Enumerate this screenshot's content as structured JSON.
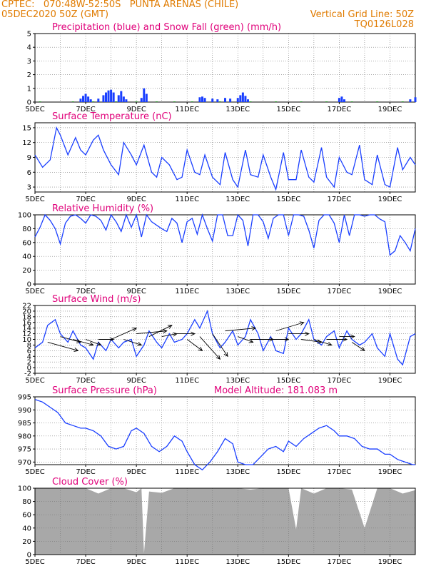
{
  "header": {
    "line1": "CPTEC:   070:48W-52:50S   PUNTA ARENAS (CHILE)",
    "line2": "05DEC2020 50Z (GMT)",
    "grid_note": "Vertical Grid Line: 50Z",
    "code": "TQ0126L028"
  },
  "colors": {
    "header": "#e07b00",
    "title": "#e0007a",
    "line": "#1a3fff",
    "snow": "#2a9a2a",
    "cloud": "#a8a8a8"
  },
  "chart_data": [
    {
      "type": "bar",
      "title": "Precipitation (blue) and Snow Fall (green) (mm/h)",
      "x_labels": [
        "5DEC",
        "7DEC",
        "9DEC",
        "11DEC",
        "13DEC",
        "15DEC",
        "17DEC",
        "19DEC"
      ],
      "ylim": [
        0,
        5
      ],
      "yticks": [
        "0",
        "1",
        "2",
        "3",
        "4",
        "5"
      ],
      "series": [
        {
          "name": "Precipitation",
          "color": "#1a3fff",
          "points": [
            [
              1.8,
              0.25
            ],
            [
              1.9,
              0.45
            ],
            [
              2.0,
              0.6
            ],
            [
              2.1,
              0.4
            ],
            [
              2.2,
              0.2
            ],
            [
              2.5,
              0.25
            ],
            [
              2.7,
              0.5
            ],
            [
              2.8,
              0.7
            ],
            [
              2.9,
              0.85
            ],
            [
              3.0,
              0.9
            ],
            [
              3.1,
              0.7
            ],
            [
              3.3,
              0.5
            ],
            [
              3.4,
              0.8
            ],
            [
              3.5,
              0.4
            ],
            [
              3.6,
              0.2
            ],
            [
              4.2,
              0.3
            ],
            [
              4.3,
              1.0
            ],
            [
              4.4,
              0.6
            ],
            [
              6.5,
              0.35
            ],
            [
              6.6,
              0.4
            ],
            [
              6.7,
              0.3
            ],
            [
              7.0,
              0.25
            ],
            [
              7.2,
              0.2
            ],
            [
              7.5,
              0.3
            ],
            [
              7.7,
              0.25
            ],
            [
              8.0,
              0.3
            ],
            [
              8.1,
              0.5
            ],
            [
              8.2,
              0.7
            ],
            [
              8.3,
              0.45
            ],
            [
              8.4,
              0.2
            ],
            [
              12.0,
              0.3
            ],
            [
              12.1,
              0.4
            ],
            [
              12.2,
              0.2
            ],
            [
              14.8,
              0.2
            ],
            [
              15.0,
              0.35
            ]
          ]
        },
        {
          "name": "Snow Fall",
          "color": "#2a9a2a",
          "points": [
            [
              0.2,
              0.05
            ],
            [
              1.5,
              0.05
            ],
            [
              2.3,
              0.05
            ],
            [
              3.2,
              0.05
            ],
            [
              4.0,
              0.05
            ],
            [
              4.8,
              0.05
            ],
            [
              5.5,
              0.05
            ],
            [
              6.2,
              0.05
            ],
            [
              7.3,
              0.05
            ],
            [
              8.5,
              0.05
            ],
            [
              9.5,
              0.05
            ],
            [
              10.5,
              0.05
            ],
            [
              11.5,
              0.05
            ],
            [
              12.5,
              0.05
            ],
            [
              13.5,
              0.05
            ],
            [
              14.5,
              0.05
            ]
          ]
        }
      ]
    },
    {
      "type": "line",
      "title": "Surface Temperature (nC)",
      "x_labels": [
        "5DEC",
        "7DEC",
        "9DEC",
        "11DEC",
        "13DEC",
        "15DEC",
        "17DEC",
        "19DEC"
      ],
      "ylim": [
        2,
        16
      ],
      "yticks": [
        "3",
        "6",
        "9",
        "12",
        "15"
      ],
      "series": [
        {
          "name": "Temperature",
          "x": [
            0,
            0.3,
            0.6,
            0.85,
            1.0,
            1.3,
            1.6,
            1.8,
            2.0,
            2.3,
            2.5,
            2.7,
            3.0,
            3.3,
            3.5,
            3.8,
            4.0,
            4.3,
            4.6,
            4.8,
            5.0,
            5.3,
            5.6,
            5.8,
            6.0,
            6.3,
            6.5,
            6.7,
            7.0,
            7.3,
            7.5,
            7.8,
            8.0,
            8.3,
            8.5,
            8.8,
            9.0,
            9.3,
            9.5,
            9.8,
            10.0,
            10.3,
            10.5,
            10.8,
            11.0,
            11.3,
            11.5,
            11.8,
            12.0,
            12.3,
            12.5,
            12.8,
            13.0,
            13.3,
            13.5,
            13.8,
            14.0,
            14.3,
            14.5,
            14.8,
            15.0
          ],
          "y": [
            9.5,
            7.0,
            8.5,
            15.0,
            13.5,
            9.5,
            13.0,
            10.5,
            9.5,
            12.5,
            13.5,
            10.5,
            7.5,
            5.5,
            12.0,
            9.5,
            7.5,
            11.5,
            6.0,
            5.0,
            9.0,
            7.5,
            4.5,
            5.0,
            10.5,
            6.0,
            5.5,
            9.5,
            5.0,
            3.5,
            10.0,
            4.5,
            3.0,
            10.5,
            5.5,
            5.0,
            9.5,
            5.0,
            2.5,
            10.0,
            4.5,
            4.5,
            10.5,
            5.0,
            4.0,
            11.0,
            5.0,
            3.0,
            9.0,
            6.0,
            5.5,
            11.5,
            4.5,
            3.5,
            9.5,
            3.5,
            3.0,
            11.0,
            6.5,
            9.0,
            7.5
          ]
        }
      ]
    },
    {
      "type": "line",
      "title": "Relative Humidity (%)",
      "x_labels": [
        "5DEC",
        "7DEC",
        "9DEC",
        "11DEC",
        "13DEC",
        "15DEC",
        "17DEC",
        "19DEC"
      ],
      "ylim": [
        0,
        100
      ],
      "yticks": [
        "0",
        "20",
        "40",
        "60",
        "80",
        "100"
      ],
      "series": [
        {
          "name": "Relative Humidity",
          "x": [
            0,
            0.2,
            0.4,
            0.6,
            0.8,
            1.0,
            1.2,
            1.4,
            1.6,
            1.8,
            2.0,
            2.2,
            2.4,
            2.6,
            2.8,
            3.0,
            3.2,
            3.4,
            3.6,
            3.8,
            4.0,
            4.2,
            4.4,
            4.6,
            4.8,
            5.0,
            5.2,
            5.4,
            5.6,
            5.8,
            6.0,
            6.2,
            6.4,
            6.6,
            6.8,
            7.0,
            7.2,
            7.4,
            7.6,
            7.8,
            8.0,
            8.2,
            8.4,
            8.6,
            8.8,
            9.0,
            9.2,
            9.4,
            9.6,
            9.8,
            10.0,
            10.2,
            10.4,
            10.6,
            10.8,
            11.0,
            11.2,
            11.4,
            11.6,
            11.8,
            12.0,
            12.2,
            12.4,
            12.6,
            12.8,
            13.0,
            13.2,
            13.4,
            13.6,
            13.8,
            14.0,
            14.2,
            14.4,
            14.6,
            14.8,
            15.0
          ],
          "y": [
            68,
            82,
            100,
            92,
            80,
            58,
            88,
            98,
            100,
            95,
            88,
            100,
            98,
            92,
            78,
            100,
            90,
            76,
            100,
            82,
            100,
            68,
            100,
            90,
            85,
            80,
            76,
            95,
            88,
            60,
            90,
            95,
            72,
            100,
            80,
            62,
            100,
            100,
            70,
            70,
            100,
            92,
            55,
            100,
            100,
            90,
            66,
            95,
            100,
            100,
            70,
            100,
            100,
            98,
            78,
            52,
            92,
            100,
            100,
            88,
            60,
            100,
            70,
            100,
            100,
            98,
            100,
            100,
            94,
            90,
            42,
            48,
            70,
            60,
            48,
            80
          ]
        }
      ]
    },
    {
      "type": "line",
      "title": "Surface Wind (m/s)",
      "x_labels": [
        "5DEC",
        "7DEC",
        "9DEC",
        "11DEC",
        "13DEC",
        "15DEC",
        "17DEC",
        "19DEC"
      ],
      "ylim": [
        -2,
        22
      ],
      "yticks": [
        "-2",
        "0",
        "2",
        "4",
        "6",
        "8",
        "10",
        "12",
        "14",
        "16",
        "18",
        "20",
        "22"
      ],
      "series": [
        {
          "name": "Wind speed",
          "x": [
            0,
            0.3,
            0.5,
            0.8,
            1.0,
            1.3,
            1.5,
            1.8,
            2.0,
            2.3,
            2.5,
            2.8,
            3.0,
            3.3,
            3.5,
            3.8,
            4.0,
            4.3,
            4.5,
            4.8,
            5.0,
            5.3,
            5.5,
            5.8,
            6.0,
            6.3,
            6.5,
            6.8,
            7.0,
            7.3,
            7.5,
            7.8,
            8.0,
            8.3,
            8.5,
            8.8,
            9.0,
            9.3,
            9.5,
            9.8,
            10.0,
            10.3,
            10.5,
            10.8,
            11.0,
            11.3,
            11.5,
            11.8,
            12.0,
            12.3,
            12.5,
            12.8,
            13.0,
            13.3,
            13.5,
            13.8,
            14.0,
            14.3,
            14.5,
            14.8,
            15.0
          ],
          "y": [
            7,
            9,
            15,
            17,
            12,
            9,
            13,
            8,
            7,
            3,
            9,
            6,
            10,
            7,
            9,
            10,
            4,
            8,
            13,
            9,
            7,
            12,
            9,
            10,
            12,
            17,
            14,
            20,
            12,
            7,
            9,
            13,
            8,
            11,
            17,
            12,
            6,
            11,
            6,
            5,
            14,
            10,
            12,
            17,
            10,
            8,
            11,
            13,
            7,
            13,
            10,
            8,
            9,
            12,
            7,
            4,
            12,
            3,
            1,
            11,
            12
          ]
        }
      ],
      "arrows": [
        [
          0.5,
          9,
          1.7,
          6
        ],
        [
          1.0,
          11,
          1.8,
          9
        ],
        [
          1.5,
          10,
          2.3,
          8
        ],
        [
          2.0,
          10,
          2.6,
          8
        ],
        [
          2.5,
          10,
          3.1,
          10
        ],
        [
          3.0,
          10,
          4.0,
          14
        ],
        [
          3.5,
          10,
          4.2,
          8
        ],
        [
          4.0,
          12,
          5.2,
          13
        ],
        [
          4.5,
          11,
          5.4,
          15
        ],
        [
          5.0,
          11,
          5.6,
          12
        ],
        [
          5.5,
          12,
          6.3,
          12
        ],
        [
          6.0,
          10,
          6.6,
          6
        ],
        [
          6.5,
          11,
          7.3,
          3
        ],
        [
          7.0,
          12,
          7.6,
          4
        ],
        [
          7.5,
          13,
          8.7,
          14
        ],
        [
          8.0,
          11,
          8.6,
          9
        ],
        [
          8.5,
          10,
          9.4,
          10
        ],
        [
          9.0,
          10,
          10.0,
          10
        ],
        [
          9.5,
          13,
          10.6,
          16
        ],
        [
          10.0,
          12,
          10.8,
          12
        ],
        [
          10.5,
          10,
          11.3,
          9
        ],
        [
          11.0,
          10,
          11.7,
          8
        ],
        [
          11.5,
          10,
          12.3,
          10
        ],
        [
          12.0,
          11,
          12.6,
          11
        ],
        [
          12.5,
          9,
          13.0,
          6
        ]
      ]
    },
    {
      "type": "line",
      "title": "Surface Pressure (hPa)",
      "annotation": "Model Altitude: 181.083 m",
      "x_labels": [
        "5DEC",
        "7DEC",
        "9DEC",
        "11DEC",
        "13DEC",
        "15DEC",
        "17DEC",
        "19DEC"
      ],
      "ylim": [
        969,
        995
      ],
      "yticks": [
        "970",
        "975",
        "980",
        "985",
        "990",
        "995"
      ],
      "series": [
        {
          "name": "Pressure",
          "x": [
            0,
            0.3,
            0.6,
            0.9,
            1.2,
            1.5,
            1.8,
            2.0,
            2.3,
            2.6,
            2.9,
            3.2,
            3.5,
            3.8,
            4.0,
            4.3,
            4.6,
            4.9,
            5.2,
            5.5,
            5.8,
            6.0,
            6.3,
            6.6,
            6.9,
            7.2,
            7.5,
            7.8,
            8.0,
            8.3,
            8.6,
            8.9,
            9.2,
            9.5,
            9.8,
            10.0,
            10.3,
            10.6,
            10.9,
            11.2,
            11.5,
            11.8,
            12.0,
            12.3,
            12.6,
            12.9,
            13.2,
            13.5,
            13.8,
            14.0,
            14.3,
            14.6,
            14.9,
            15.0
          ],
          "y": [
            994,
            993,
            991,
            989,
            985,
            984,
            983,
            983,
            982,
            980,
            976,
            975,
            976,
            982,
            983,
            981,
            976,
            974,
            976,
            980,
            978,
            974,
            969,
            967,
            970,
            974,
            979,
            977,
            970,
            969,
            969,
            972,
            975,
            976,
            974,
            978,
            976,
            979,
            981,
            983,
            984,
            982,
            980,
            980,
            979,
            976,
            975,
            975,
            973,
            973,
            971,
            970,
            969,
            969
          ]
        }
      ]
    },
    {
      "type": "area",
      "title": "Cloud Cover (%)",
      "x_labels": [
        "5DEC",
        "7DEC",
        "9DEC",
        "11DEC",
        "13DEC",
        "15DEC",
        "17DEC",
        "19DEC"
      ],
      "ylim": [
        0,
        100
      ],
      "yticks": [
        "0",
        "20",
        "40",
        "60",
        "80",
        "100"
      ],
      "series": [
        {
          "name": "Cloud Cover",
          "x": [
            0,
            0.5,
            1.0,
            1.5,
            2.0,
            2.5,
            3.0,
            3.5,
            4.0,
            4.2,
            4.3,
            4.5,
            5.0,
            5.5,
            6.0,
            6.5,
            7.0,
            7.5,
            8.0,
            8.5,
            9.0,
            10.0,
            10.3,
            10.5,
            11.0,
            11.5,
            12.0,
            12.5,
            13.0,
            13.5,
            14.0,
            14.5,
            15.0
          ],
          "y": [
            100,
            100,
            100,
            100,
            100,
            92,
            100,
            100,
            94,
            100,
            2,
            95,
            93,
            100,
            100,
            100,
            100,
            100,
            100,
            98,
            100,
            100,
            38,
            100,
            92,
            100,
            100,
            98,
            40,
            100,
            100,
            92,
            97
          ]
        }
      ]
    }
  ]
}
